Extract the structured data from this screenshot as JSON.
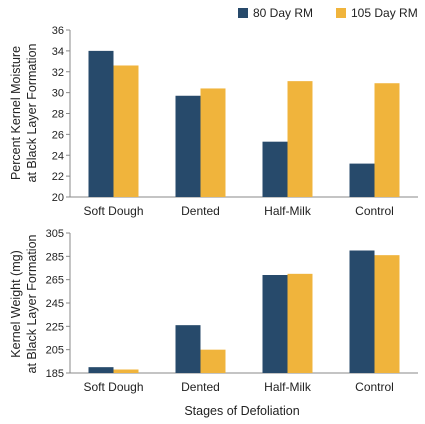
{
  "colors": {
    "series1": "#274a6b",
    "series2": "#f0b43c",
    "axis": "#888888"
  },
  "legend": {
    "series1_label": "80 Day RM",
    "series2_label": "105 Day RM",
    "placement": "top-right"
  },
  "shared_xlabel": "Stages of Defoliation",
  "chart_data": [
    {
      "type": "bar",
      "categories": [
        "Soft Dough",
        "Dented",
        "Half-Milk",
        "Control"
      ],
      "series": [
        {
          "name": "80 Day RM",
          "values": [
            34.0,
            29.7,
            25.3,
            23.2
          ]
        },
        {
          "name": "105 Day RM",
          "values": [
            32.6,
            30.4,
            31.1,
            30.9
          ]
        }
      ],
      "ylabel_line1": "Percent Kernel Moisture",
      "ylabel_line2": "at Black Layer Formation",
      "xlabel": "",
      "ylim": [
        20,
        36
      ],
      "yticks": [
        20,
        22,
        24,
        26,
        28,
        30,
        32,
        34,
        36
      ],
      "grid": false
    },
    {
      "type": "bar",
      "categories": [
        "Soft Dough",
        "Dented",
        "Half-Milk",
        "Control"
      ],
      "series": [
        {
          "name": "80 Day RM",
          "values": [
            190,
            226,
            269,
            290
          ]
        },
        {
          "name": "105 Day RM",
          "values": [
            188,
            205,
            270,
            286
          ]
        }
      ],
      "ylabel_line1": "Kernel Weight (mg)",
      "ylabel_line2": "at Black Layer Formation",
      "xlabel": "Stages of Defoliation",
      "ylim": [
        185,
        305
      ],
      "yticks": [
        185,
        205,
        225,
        245,
        265,
        285,
        305
      ],
      "grid": false
    }
  ]
}
